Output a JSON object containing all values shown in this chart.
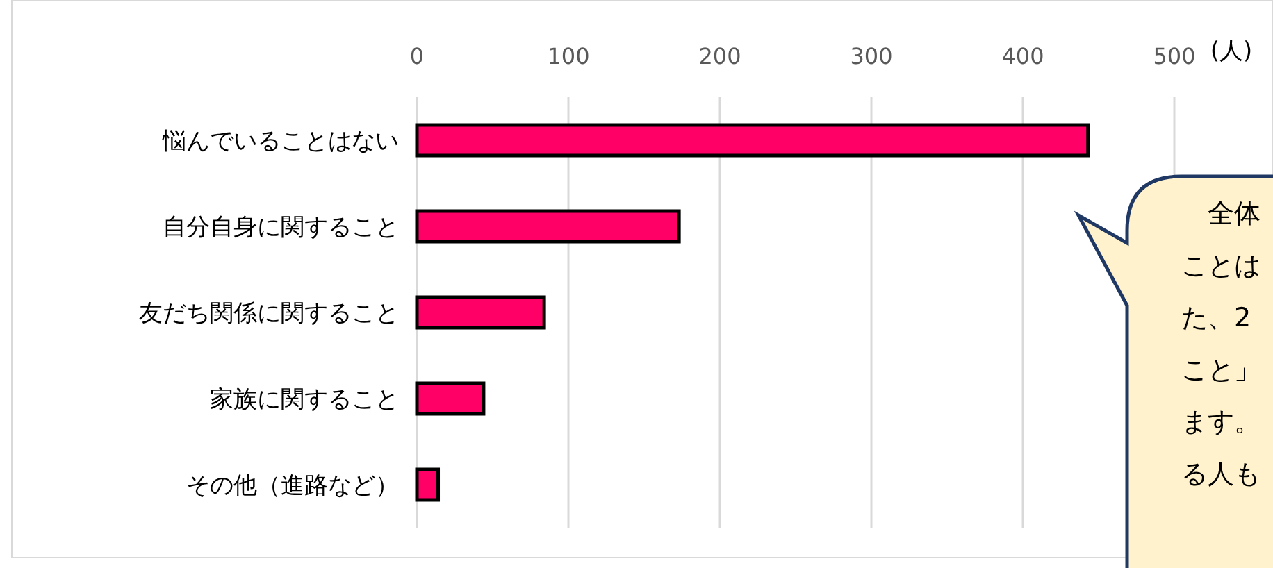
{
  "chart_data": {
    "type": "bar",
    "orientation": "horizontal",
    "xlabel": "(人)",
    "categories": [
      "悩んでいることはない",
      "自分自身に関すること",
      "友だち関係に関すること",
      "家族に関すること",
      "その他（進路など）"
    ],
    "values": [
      443,
      173,
      84,
      44,
      14
    ],
    "color": "#ff0066",
    "xlim": [
      0,
      500
    ],
    "xticks": [
      0,
      100,
      200,
      300,
      400,
      500
    ],
    "grid": "x",
    "annotations": [
      "　全体",
      "ことは",
      "た、2",
      "こと」",
      "ます。",
      "る人も"
    ]
  }
}
